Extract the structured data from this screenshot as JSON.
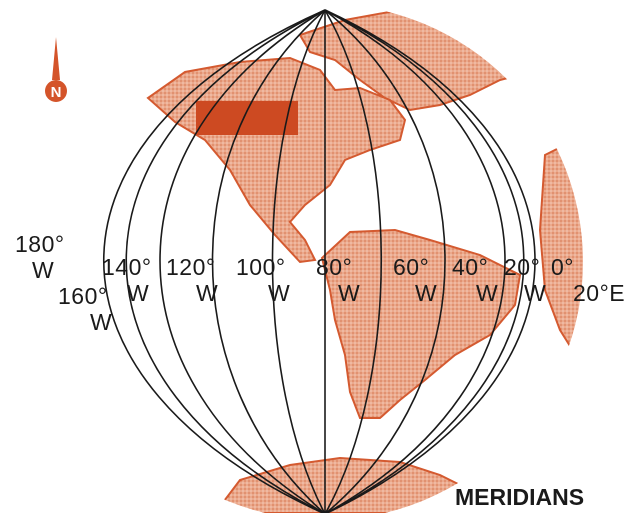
{
  "compass": {
    "letter": "N"
  },
  "colors": {
    "land": "#e7a588",
    "land_edge": "#d45a30",
    "highlight": "#cd4a22",
    "line": "#1a1a1a"
  },
  "labels": {
    "m180": {
      "deg": "180°",
      "dir": "W"
    },
    "m160": {
      "deg": "160°",
      "dir": "W"
    },
    "m140": {
      "deg": "140°",
      "dir": "W"
    },
    "m120": {
      "deg": "120°",
      "dir": "W"
    },
    "m100": {
      "deg": "100°",
      "dir": "W"
    },
    "m80": {
      "deg": "80°",
      "dir": "W"
    },
    "m60": {
      "deg": "60°",
      "dir": "W"
    },
    "m40": {
      "deg": "40°",
      "dir": "W"
    },
    "m20": {
      "deg": "20°",
      "dir": "W"
    },
    "m0": {
      "deg": "0°"
    },
    "m20e": {
      "deg": "20°E"
    }
  },
  "title": "MERIDIANS"
}
